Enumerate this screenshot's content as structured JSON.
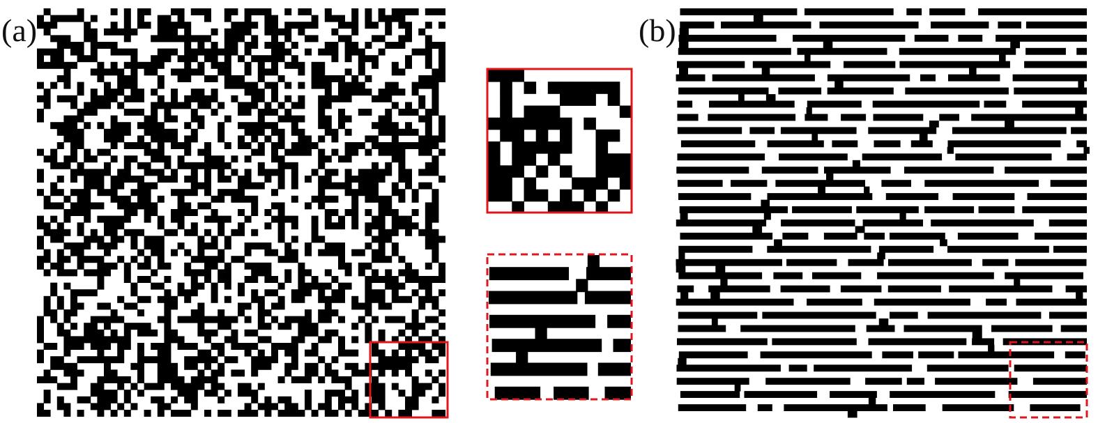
{
  "figure": {
    "panel_a": {
      "label": "(a)",
      "pattern": "random-pixel"
    },
    "panel_b": {
      "label": "(b)",
      "pattern": "horizontal-stripes"
    },
    "zoom_solid": {
      "border_color": "#e0161b",
      "border_style": "solid"
    },
    "zoom_dashed": {
      "border_color": "#e0161b",
      "border_style": "dashed"
    },
    "colors": {
      "foreground": "#000000",
      "background": "#ffffff",
      "highlight": "#e0161b"
    }
  }
}
